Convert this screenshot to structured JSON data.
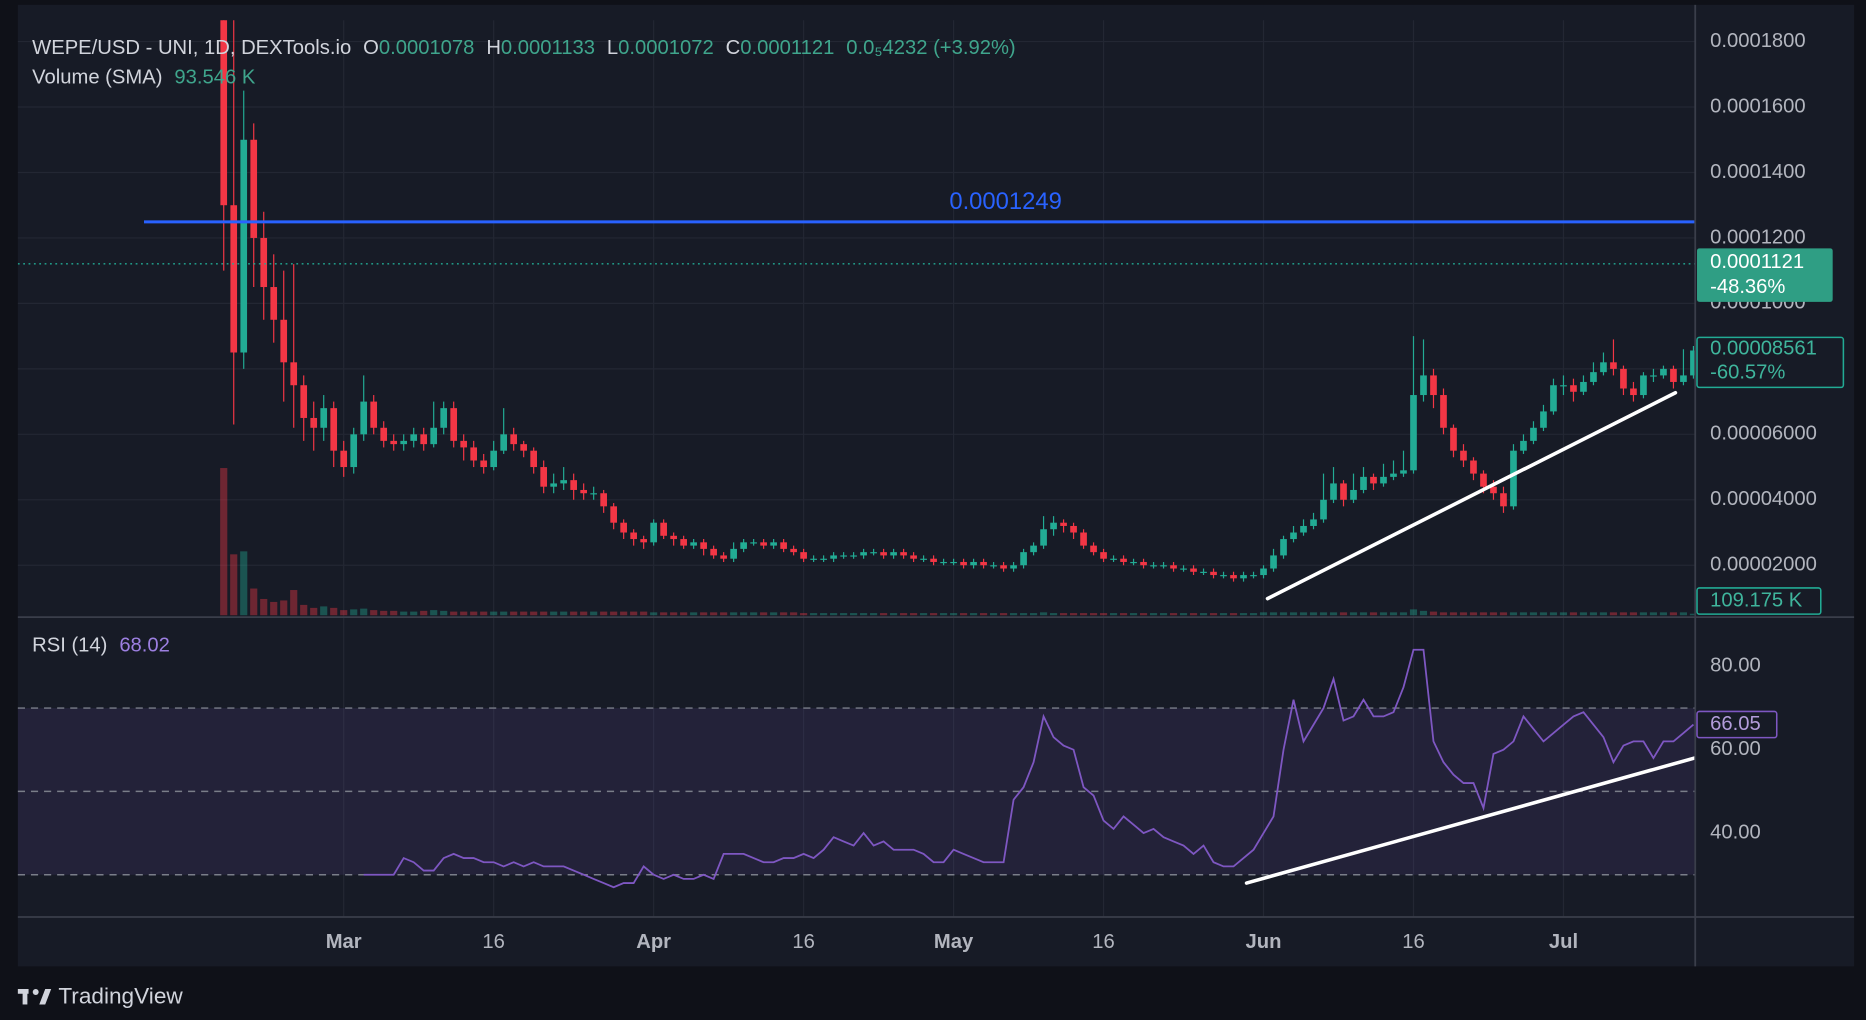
{
  "chart_data": {
    "type": "candlestick",
    "title": "WEPE/USD - UNI, 1D, DEXTools.io",
    "legend": [
      {
        "label": "O",
        "value": 0.0001078
      },
      {
        "label": "H",
        "value": 0.0001133
      },
      {
        "label": "L",
        "value": 0.0001072
      },
      {
        "label": "C",
        "value": 0.0001121
      }
    ],
    "legend_change": "0.0₅4232 (+3.92%)",
    "volume_name": "Volume (SMA)",
    "volume_sma": "93.546 K",
    "up_color": "#22ab94",
    "down_color": "#f23645",
    "grid": true,
    "xlim": [
      0,
      147
    ],
    "xticks": [
      {
        "value": 12,
        "label": "Mar"
      },
      {
        "value": 27,
        "label": "16"
      },
      {
        "value": 43,
        "label": "Apr"
      },
      {
        "value": 58,
        "label": "16"
      },
      {
        "value": 73,
        "label": "May"
      },
      {
        "value": 88,
        "label": "16"
      },
      {
        "value": 104,
        "label": "Jun"
      },
      {
        "value": 119,
        "label": "16"
      },
      {
        "value": 134,
        "label": "Jul"
      }
    ],
    "ylim": [
      4.7e-06,
      0.0001865
    ],
    "yticks": [
      {
        "value": 2e-05,
        "label": "0.00002000"
      },
      {
        "value": 4e-05,
        "label": "0.00004000"
      },
      {
        "value": 6e-05,
        "label": "0.00006000"
      },
      {
        "value": 8e-05,
        "label": "0.00008000"
      },
      {
        "value": 0.0001,
        "label": "0.0001000"
      },
      {
        "value": 0.00012,
        "label": "0.0001200"
      },
      {
        "value": 0.00014,
        "label": "0.0001400"
      },
      {
        "value": 0.00016,
        "label": "0.0001600"
      },
      {
        "value": 0.00018,
        "label": "0.0001800"
      }
    ],
    "candles": [
      [
        0.0002,
        0.00023,
        0.00011,
        0.00013
      ],
      [
        0.00013,
        0.00019,
        6.3e-05,
        8.5e-05
      ],
      [
        8.5e-05,
        0.000165,
        8e-05,
        0.00015
      ],
      [
        0.00015,
        0.000155,
        0.000105,
        0.00012
      ],
      [
        0.00012,
        0.000128,
        9.5e-05,
        0.000105
      ],
      [
        0.000105,
        0.000115,
        8.8e-05,
        9.5e-05
      ],
      [
        9.5e-05,
        0.00011,
        7e-05,
        8.2e-05
      ],
      [
        8.2e-05,
        0.000112,
        6.2e-05,
        7.5e-05
      ],
      [
        7.5e-05,
        7.8e-05,
        5.8e-05,
        6.5e-05
      ],
      [
        6.5e-05,
        7e-05,
        5.5e-05,
        6.2e-05
      ],
      [
        6.2e-05,
        7.2e-05,
        5.8e-05,
        6.8e-05
      ],
      [
        6.8e-05,
        7e-05,
        5e-05,
        5.5e-05
      ],
      [
        5.5e-05,
        5.8e-05,
        4.7e-05,
        5e-05
      ],
      [
        5e-05,
        6.2e-05,
        4.8e-05,
        6e-05
      ],
      [
        6e-05,
        7.8e-05,
        5.8e-05,
        7e-05
      ],
      [
        7e-05,
        7.2e-05,
        6e-05,
        6.2e-05
      ],
      [
        6.2e-05,
        6.4e-05,
        5.6e-05,
        5.8e-05
      ],
      [
        5.8e-05,
        6e-05,
        5.5e-05,
        5.7e-05
      ],
      [
        5.7e-05,
        6e-05,
        5.5e-05,
        5.8e-05
      ],
      [
        5.8e-05,
        6.2e-05,
        5.6e-05,
        6e-05
      ],
      [
        6e-05,
        6.2e-05,
        5.5e-05,
        5.7e-05
      ],
      [
        5.7e-05,
        7e-05,
        5.6e-05,
        6.2e-05
      ],
      [
        6.2e-05,
        7e-05,
        6e-05,
        6.8e-05
      ],
      [
        6.8e-05,
        7e-05,
        5.6e-05,
        5.8e-05
      ],
      [
        5.8e-05,
        6e-05,
        5.2e-05,
        5.6e-05
      ],
      [
        5.6e-05,
        5.8e-05,
        5e-05,
        5.2e-05
      ],
      [
        5.2e-05,
        5.4e-05,
        4.8e-05,
        5e-05
      ],
      [
        5e-05,
        5.8e-05,
        4.9e-05,
        5.5e-05
      ],
      [
        5.5e-05,
        6.8e-05,
        5.4e-05,
        6e-05
      ],
      [
        6e-05,
        6.2e-05,
        5.5e-05,
        5.7e-05
      ],
      [
        5.7e-05,
        5.8e-05,
        5.3e-05,
        5.5e-05
      ],
      [
        5.5e-05,
        5.6e-05,
        4.8e-05,
        5e-05
      ],
      [
        5e-05,
        5.2e-05,
        4.2e-05,
        4.4e-05
      ],
      [
        4.4e-05,
        4.8e-05,
        4.2e-05,
        4.5e-05
      ],
      [
        4.5e-05,
        5e-05,
        4.3e-05,
        4.6e-05
      ],
      [
        4.6e-05,
        4.8e-05,
        4e-05,
        4.3e-05
      ],
      [
        4.3e-05,
        4.5e-05,
        4e-05,
        4.2e-05
      ],
      [
        4.2e-05,
        4.4e-05,
        4e-05,
        4.2e-05
      ],
      [
        4.2e-05,
        4.3e-05,
        3.6e-05,
        3.8e-05
      ],
      [
        3.8e-05,
        3.9e-05,
        3.1e-05,
        3.3e-05
      ],
      [
        3.3e-05,
        3.4e-05,
        2.8e-05,
        3e-05
      ],
      [
        3e-05,
        3.1e-05,
        2.6e-05,
        2.8e-05
      ],
      [
        2.8e-05,
        2.9e-05,
        2.5e-05,
        2.7e-05
      ],
      [
        2.7e-05,
        3.4e-05,
        2.6e-05,
        3.3e-05
      ],
      [
        3.3e-05,
        3.4e-05,
        2.8e-05,
        2.9e-05
      ],
      [
        2.9e-05,
        3e-05,
        2.6e-05,
        2.8e-05
      ],
      [
        2.8e-05,
        2.9e-05,
        2.5e-05,
        2.6e-05
      ],
      [
        2.6e-05,
        2.8e-05,
        2.5e-05,
        2.7e-05
      ],
      [
        2.7e-05,
        2.8e-05,
        2.3e-05,
        2.5e-05
      ],
      [
        2.5e-05,
        2.6e-05,
        2.2e-05,
        2.3e-05
      ],
      [
        2.3e-05,
        2.4e-05,
        2.1e-05,
        2.2e-05
      ],
      [
        2.2e-05,
        2.7e-05,
        2.1e-05,
        2.5e-05
      ],
      [
        2.5e-05,
        2.8e-05,
        2.4e-05,
        2.7e-05
      ],
      [
        2.7e-05,
        2.8e-05,
        2.6e-05,
        2.7e-05
      ],
      [
        2.7e-05,
        2.8e-05,
        2.5e-05,
        2.6e-05
      ],
      [
        2.6e-05,
        2.8e-05,
        2.5e-05,
        2.7e-05
      ],
      [
        2.7e-05,
        2.8e-05,
        2.4e-05,
        2.5e-05
      ],
      [
        2.5e-05,
        2.6e-05,
        2.3e-05,
        2.4e-05
      ],
      [
        2.4e-05,
        2.5e-05,
        2.1e-05,
        2.2e-05
      ],
      [
        2.2e-05,
        2.3e-05,
        2.1e-05,
        2.2e-05
      ],
      [
        2.2e-05,
        2.3e-05,
        2.1e-05,
        2.2e-05
      ],
      [
        2.2e-05,
        2.4e-05,
        2.1e-05,
        2.3e-05
      ],
      [
        2.3e-05,
        2.4e-05,
        2.2e-05,
        2.3e-05
      ],
      [
        2.3e-05,
        2.4e-05,
        2.2e-05,
        2.3e-05
      ],
      [
        2.3e-05,
        2.5e-05,
        2.2e-05,
        2.4e-05
      ],
      [
        2.4e-05,
        2.5e-05,
        2.3e-05,
        2.4e-05
      ],
      [
        2.4e-05,
        2.5e-05,
        2.2e-05,
        2.3e-05
      ],
      [
        2.3e-05,
        2.5e-05,
        2.2e-05,
        2.4e-05
      ],
      [
        2.4e-05,
        2.5e-05,
        2.2e-05,
        2.3e-05
      ],
      [
        2.3e-05,
        2.4e-05,
        2.1e-05,
        2.2e-05
      ],
      [
        2.2e-05,
        2.3e-05,
        2.1e-05,
        2.2e-05
      ],
      [
        2.2e-05,
        2.3e-05,
        2e-05,
        2.1e-05
      ],
      [
        2.1e-05,
        2.2e-05,
        2e-05,
        2.1e-05
      ],
      [
        2.1e-05,
        2.2e-05,
        2e-05,
        2.1e-05
      ],
      [
        2.1e-05,
        2.2e-05,
        1.9e-05,
        2e-05
      ],
      [
        2e-05,
        2.2e-05,
        1.9e-05,
        2.1e-05
      ],
      [
        2.1e-05,
        2.2e-05,
        1.9e-05,
        2e-05
      ],
      [
        2e-05,
        2.1e-05,
        1.9e-05,
        2e-05
      ],
      [
        2e-05,
        2.1e-05,
        1.8e-05,
        1.9e-05
      ],
      [
        1.9e-05,
        2.1e-05,
        1.8e-05,
        2e-05
      ],
      [
        2e-05,
        2.5e-05,
        1.9e-05,
        2.4e-05
      ],
      [
        2.4e-05,
        2.7e-05,
        2.3e-05,
        2.6e-05
      ],
      [
        2.6e-05,
        3.5e-05,
        2.5e-05,
        3.1e-05
      ],
      [
        3.1e-05,
        3.5e-05,
        2.9e-05,
        3.3e-05
      ],
      [
        3.3e-05,
        3.4e-05,
        3e-05,
        3.2e-05
      ],
      [
        3.2e-05,
        3.3e-05,
        2.8e-05,
        3e-05
      ],
      [
        3e-05,
        3.1e-05,
        2.5e-05,
        2.6e-05
      ],
      [
        2.6e-05,
        2.7e-05,
        2.3e-05,
        2.4e-05
      ],
      [
        2.4e-05,
        2.5e-05,
        2.1e-05,
        2.2e-05
      ],
      [
        2.2e-05,
        2.3e-05,
        2.1e-05,
        2.2e-05
      ],
      [
        2.2e-05,
        2.3e-05,
        2e-05,
        2.1e-05
      ],
      [
        2.1e-05,
        2.2e-05,
        2e-05,
        2.1e-05
      ],
      [
        2.1e-05,
        2.2e-05,
        1.9e-05,
        2e-05
      ],
      [
        2e-05,
        2.1e-05,
        1.9e-05,
        2e-05
      ],
      [
        2e-05,
        2.1e-05,
        1.9e-05,
        2e-05
      ],
      [
        2e-05,
        2.1e-05,
        1.8e-05,
        1.9e-05
      ],
      [
        1.9e-05,
        2e-05,
        1.8e-05,
        1.9e-05
      ],
      [
        1.9e-05,
        2e-05,
        1.7e-05,
        1.8e-05
      ],
      [
        1.8e-05,
        1.9e-05,
        1.7e-05,
        1.8e-05
      ],
      [
        1.8e-05,
        1.9e-05,
        1.6e-05,
        1.7e-05
      ],
      [
        1.7e-05,
        1.8e-05,
        1.6e-05,
        1.7e-05
      ],
      [
        1.7e-05,
        1.8e-05,
        1.5e-05,
        1.6e-05
      ],
      [
        1.6e-05,
        1.8e-05,
        1.5e-05,
        1.7e-05
      ],
      [
        1.7e-05,
        1.8e-05,
        1.6e-05,
        1.7e-05
      ],
      [
        1.7e-05,
        2e-05,
        1.6e-05,
        1.9e-05
      ],
      [
        1.9e-05,
        2.5e-05,
        1.8e-05,
        2.3e-05
      ],
      [
        2.3e-05,
        2.9e-05,
        2.2e-05,
        2.8e-05
      ],
      [
        2.8e-05,
        3.2e-05,
        2.7e-05,
        3e-05
      ],
      [
        3e-05,
        3.4e-05,
        2.9e-05,
        3.2e-05
      ],
      [
        3.2e-05,
        3.6e-05,
        3.1e-05,
        3.4e-05
      ],
      [
        3.4e-05,
        4.8e-05,
        3.3e-05,
        4e-05
      ],
      [
        4e-05,
        5e-05,
        3.9e-05,
        4.5e-05
      ],
      [
        4.5e-05,
        4.6e-05,
        3.8e-05,
        4e-05
      ],
      [
        4e-05,
        4.8e-05,
        3.9e-05,
        4.3e-05
      ],
      [
        4.3e-05,
        5e-05,
        4.2e-05,
        4.7e-05
      ],
      [
        4.7e-05,
        4.8e-05,
        4.3e-05,
        4.5e-05
      ],
      [
        4.5e-05,
        5.1e-05,
        4.4e-05,
        4.7e-05
      ],
      [
        4.7e-05,
        5.2e-05,
        4.6e-05,
        4.8e-05
      ],
      [
        4.8e-05,
        5.5e-05,
        4.7e-05,
        4.9e-05
      ],
      [
        4.9e-05,
        9e-05,
        4.8e-05,
        7.2e-05
      ],
      [
        7.2e-05,
        8.9e-05,
        7e-05,
        7.8e-05
      ],
      [
        7.8e-05,
        8e-05,
        6.8e-05,
        7.2e-05
      ],
      [
        7.2e-05,
        7.4e-05,
        6e-05,
        6.2e-05
      ],
      [
        6.2e-05,
        6.3e-05,
        5.3e-05,
        5.5e-05
      ],
      [
        5.5e-05,
        5.7e-05,
        5e-05,
        5.2e-05
      ],
      [
        5.2e-05,
        5.3e-05,
        4.6e-05,
        4.8e-05
      ],
      [
        4.8e-05,
        4.9e-05,
        4.2e-05,
        4.4e-05
      ],
      [
        4.4e-05,
        4.6e-05,
        4e-05,
        4.2e-05
      ],
      [
        4.2e-05,
        4.4e-05,
        3.6e-05,
        3.8e-05
      ],
      [
        3.8e-05,
        5.7e-05,
        3.7e-05,
        5.5e-05
      ],
      [
        5.5e-05,
        6e-05,
        5.4e-05,
        5.8e-05
      ],
      [
        5.8e-05,
        6.4e-05,
        5.7e-05,
        6.2e-05
      ],
      [
        6.2e-05,
        6.9e-05,
        6.1e-05,
        6.7e-05
      ],
      [
        6.7e-05,
        7.7e-05,
        6.6e-05,
        7.5e-05
      ],
      [
        7.5e-05,
        7.8e-05,
        7.2e-05,
        7.5e-05
      ],
      [
        7.5e-05,
        7.7e-05,
        7e-05,
        7.3e-05
      ],
      [
        7.3e-05,
        7.8e-05,
        7.2e-05,
        7.6e-05
      ],
      [
        7.6e-05,
        8.2e-05,
        7.5e-05,
        7.9e-05
      ],
      [
        7.9e-05,
        8.5e-05,
        7.8e-05,
        8.2e-05
      ],
      [
        8.2e-05,
        8.9e-05,
        7.8e-05,
        8e-05
      ],
      [
        8e-05,
        8.1e-05,
        7.2e-05,
        7.4e-05
      ],
      [
        7.4e-05,
        7.6e-05,
        7e-05,
        7.2e-05
      ],
      [
        7.2e-05,
        7.9e-05,
        7.1e-05,
        7.8e-05
      ],
      [
        7.8e-05,
        8e-05,
        7.6e-05,
        7.8e-05
      ],
      [
        7.8e-05,
        8.1e-05,
        7.7e-05,
        8e-05
      ],
      [
        8e-05,
        8.1e-05,
        7.4e-05,
        7.6e-05
      ],
      [
        7.6e-05,
        8.6e-05,
        7.5e-05,
        7.8e-05
      ],
      [
        7.8e-05,
        8.7e-05,
        7.7e-05,
        8.561e-05
      ]
    ],
    "volume_ylim": [
      0,
      40000000
    ],
    "volumes": [
      9900000,
      4100000,
      4300000,
      1800000,
      1100000,
      900000,
      1000000,
      1700000,
      700000,
      500000,
      600000,
      500000,
      350000,
      400000,
      450000,
      350000,
      300000,
      300000,
      250000,
      250000,
      300000,
      350000,
      300000,
      250000,
      250000,
      250000,
      250000,
      250000,
      250000,
      250000,
      250000,
      250000,
      250000,
      250000,
      250000,
      250000,
      250000,
      250000,
      250000,
      250000,
      250000,
      250000,
      250000,
      200000,
      200000,
      200000,
      200000,
      200000,
      200000,
      200000,
      200000,
      200000,
      200000,
      200000,
      200000,
      200000,
      200000,
      200000,
      150000,
      150000,
      150000,
      150000,
      150000,
      150000,
      150000,
      150000,
      150000,
      150000,
      150000,
      150000,
      150000,
      150000,
      150000,
      150000,
      150000,
      150000,
      150000,
      150000,
      150000,
      150000,
      150000,
      150000,
      200000,
      150000,
      150000,
      150000,
      150000,
      150000,
      150000,
      150000,
      150000,
      150000,
      150000,
      150000,
      150000,
      150000,
      150000,
      150000,
      150000,
      150000,
      150000,
      150000,
      150000,
      150000,
      200000,
      200000,
      200000,
      200000,
      200000,
      200000,
      200000,
      200000,
      200000,
      200000,
      200000,
      200000,
      200000,
      200000,
      200000,
      400000,
      300000,
      250000,
      200000,
      200000,
      200000,
      200000,
      200000,
      200000,
      200000,
      200000,
      200000,
      200000,
      200000,
      200000,
      200000,
      200000,
      200000,
      200000,
      200000,
      200000,
      200000,
      200000,
      200000,
      200000,
      200000,
      200000,
      200000,
      109175
    ],
    "last_volume": "109.175 K",
    "price_line": {
      "value": 0.0001249,
      "label": "0.0001249",
      "color": "#2962ff"
    },
    "close_badge": {
      "value": 0.0001121,
      "change": "-48.36%"
    },
    "last_badge": {
      "value": 8.561e-05,
      "change": "-60.57%"
    },
    "trendline": {
      "x": [
        104.4,
        145.2
      ],
      "y": [
        9.8e-06,
        7.27e-05
      ],
      "color": "#ffffff"
    },
    "rsi": {
      "name": "RSI (14)",
      "value_label": "68.02",
      "color": "#7e57c2",
      "ylim": [
        20,
        91.4
      ],
      "yticks": [
        {
          "value": 40,
          "label": "40.00"
        },
        {
          "value": 60,
          "label": "60.00"
        },
        {
          "value": 80,
          "label": "80.00"
        }
      ],
      "levels": [
        30,
        50,
        70
      ],
      "values": [
        null,
        null,
        null,
        null,
        null,
        null,
        null,
        null,
        null,
        null,
        null,
        null,
        null,
        null,
        30,
        30,
        30,
        30,
        34,
        33,
        31,
        31,
        34,
        35,
        34,
        34,
        33,
        33,
        32,
        33,
        32,
        33,
        32,
        32,
        32,
        31,
        30,
        29,
        28,
        27,
        28,
        28,
        32,
        30,
        29,
        30,
        29,
        29,
        30,
        29,
        35,
        35,
        35,
        34,
        33,
        33,
        34,
        34,
        35,
        34,
        36,
        39,
        38,
        37,
        40,
        37,
        38,
        36,
        36,
        36,
        35,
        33,
        33,
        36,
        35,
        34,
        33,
        33,
        33,
        48,
        51,
        57,
        68,
        63,
        61,
        60,
        51,
        49,
        43,
        41,
        44,
        42,
        40,
        41,
        39,
        38,
        37,
        35,
        37,
        33,
        32,
        32,
        34,
        36,
        40,
        44,
        60,
        72,
        62,
        66,
        70,
        77,
        67,
        68,
        72,
        68,
        68,
        69,
        75,
        84,
        84,
        62,
        57,
        54,
        52,
        52,
        46,
        59,
        60,
        62,
        68,
        65,
        62,
        64,
        66,
        68,
        69,
        66,
        63,
        57,
        61,
        62,
        62,
        58,
        62,
        62,
        64,
        66.05
      ],
      "last_label": "66.05",
      "trendline": {
        "x": [
          102.3,
          147.1
        ],
        "y": [
          28,
          58
        ],
        "color": "#ffffff"
      }
    }
  },
  "brand": "TradingView"
}
